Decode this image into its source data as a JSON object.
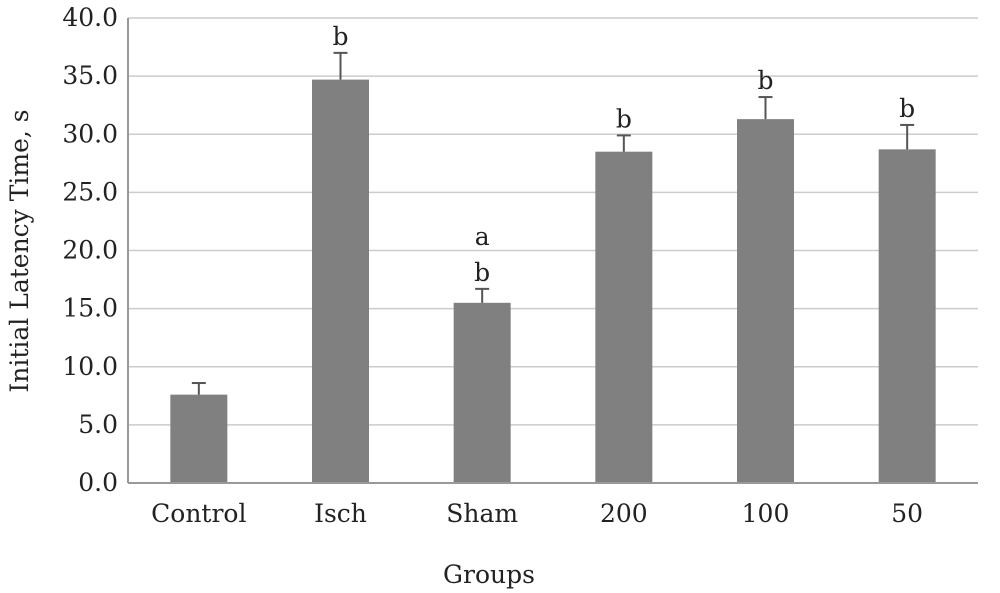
{
  "chart_data": {
    "type": "bar",
    "xlabel": "Groups",
    "ylabel": "Initial Latency Time, s",
    "ylim": [
      0,
      40
    ],
    "yticks": [
      0,
      5,
      10,
      15,
      20,
      25,
      30,
      35,
      40
    ],
    "ytick_labels": [
      "0.0",
      "5.0",
      "10.0",
      "15.0",
      "20.0",
      "25.0",
      "30.0",
      "35.0",
      "40.0"
    ],
    "grid": "horizontal",
    "categories": [
      "Control",
      "Isch",
      "Sham",
      "200",
      "100",
      "50"
    ],
    "values": [
      7.6,
      34.7,
      15.5,
      28.5,
      31.3,
      28.7
    ],
    "errors": [
      1.0,
      2.3,
      1.2,
      1.4,
      1.9,
      2.1
    ],
    "significance": [
      [],
      [
        "b"
      ],
      [
        "a",
        "b"
      ],
      [
        "b"
      ],
      [
        "b"
      ],
      [
        "b"
      ]
    ],
    "bar_color": "#808080",
    "error_color": "#555555",
    "grid_color": "#cccccc",
    "axis_color": "#999999"
  }
}
